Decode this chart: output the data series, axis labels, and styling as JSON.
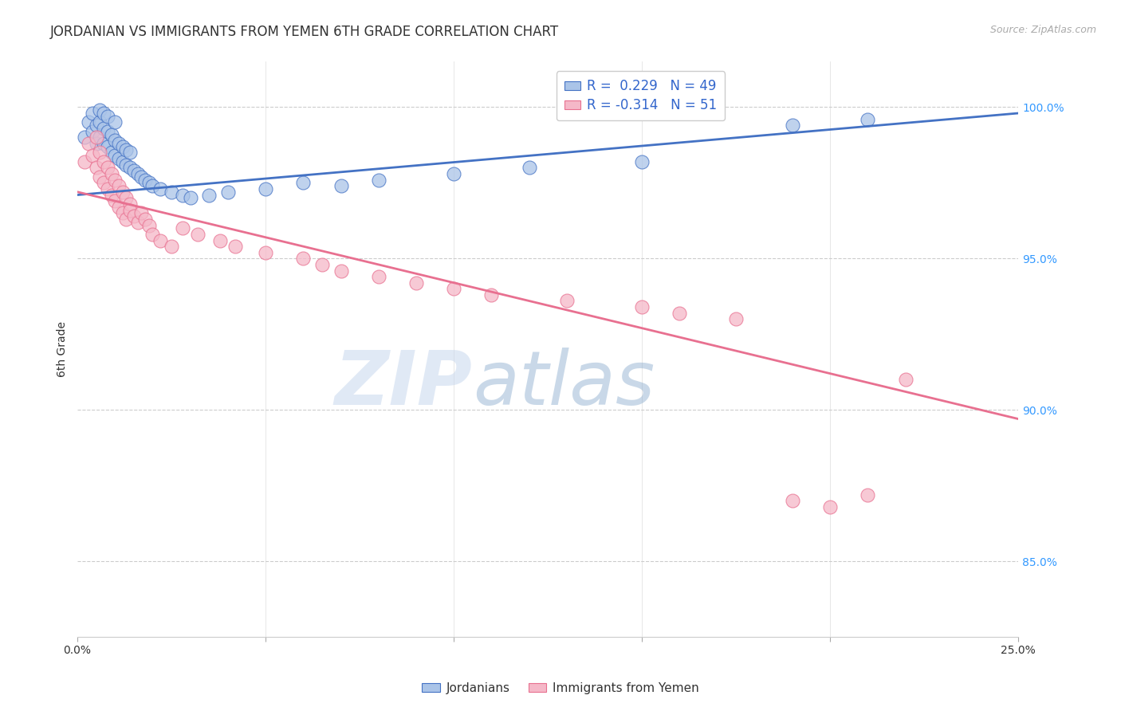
{
  "title": "JORDANIAN VS IMMIGRANTS FROM YEMEN 6TH GRADE CORRELATION CHART",
  "source": "Source: ZipAtlas.com",
  "ylabel": "6th Grade",
  "yticks": [
    0.85,
    0.9,
    0.95,
    1.0
  ],
  "ytick_labels": [
    "85.0%",
    "90.0%",
    "95.0%",
    "100.0%"
  ],
  "xlim": [
    0.0,
    0.25
  ],
  "ylim": [
    0.825,
    1.015
  ],
  "legend1_label": "R =  0.229   N = 49",
  "legend2_label": "R = -0.314   N = 51",
  "legend_label1": "Jordanians",
  "legend_label2": "Immigrants from Yemen",
  "blue_color": "#aac4e8",
  "pink_color": "#f5b8c8",
  "line_blue": "#4472c4",
  "line_pink": "#e87090",
  "blue_x": [
    0.002,
    0.003,
    0.004,
    0.004,
    0.005,
    0.005,
    0.006,
    0.006,
    0.006,
    0.007,
    0.007,
    0.007,
    0.008,
    0.008,
    0.008,
    0.009,
    0.009,
    0.01,
    0.01,
    0.01,
    0.011,
    0.011,
    0.012,
    0.012,
    0.013,
    0.013,
    0.014,
    0.014,
    0.015,
    0.016,
    0.017,
    0.018,
    0.019,
    0.02,
    0.022,
    0.025,
    0.028,
    0.03,
    0.035,
    0.04,
    0.05,
    0.06,
    0.07,
    0.08,
    0.1,
    0.12,
    0.15,
    0.19,
    0.21
  ],
  "blue_y": [
    0.99,
    0.995,
    0.992,
    0.998,
    0.988,
    0.994,
    0.99,
    0.995,
    0.999,
    0.988,
    0.993,
    0.998,
    0.987,
    0.992,
    0.997,
    0.985,
    0.991,
    0.984,
    0.989,
    0.995,
    0.983,
    0.988,
    0.982,
    0.987,
    0.981,
    0.986,
    0.98,
    0.985,
    0.979,
    0.978,
    0.977,
    0.976,
    0.975,
    0.974,
    0.973,
    0.972,
    0.971,
    0.97,
    0.971,
    0.972,
    0.973,
    0.975,
    0.974,
    0.976,
    0.978,
    0.98,
    0.982,
    0.994,
    0.996
  ],
  "pink_x": [
    0.002,
    0.003,
    0.004,
    0.005,
    0.005,
    0.006,
    0.006,
    0.007,
    0.007,
    0.008,
    0.008,
    0.009,
    0.009,
    0.01,
    0.01,
    0.011,
    0.011,
    0.012,
    0.012,
    0.013,
    0.013,
    0.014,
    0.014,
    0.015,
    0.016,
    0.017,
    0.018,
    0.019,
    0.02,
    0.022,
    0.025,
    0.028,
    0.032,
    0.038,
    0.042,
    0.05,
    0.06,
    0.065,
    0.07,
    0.08,
    0.09,
    0.1,
    0.11,
    0.13,
    0.15,
    0.16,
    0.175,
    0.19,
    0.2,
    0.21,
    0.22
  ],
  "pink_y": [
    0.982,
    0.988,
    0.984,
    0.98,
    0.99,
    0.977,
    0.985,
    0.975,
    0.982,
    0.973,
    0.98,
    0.971,
    0.978,
    0.969,
    0.976,
    0.967,
    0.974,
    0.965,
    0.972,
    0.963,
    0.97,
    0.968,
    0.966,
    0.964,
    0.962,
    0.965,
    0.963,
    0.961,
    0.958,
    0.956,
    0.954,
    0.96,
    0.958,
    0.956,
    0.954,
    0.952,
    0.95,
    0.948,
    0.946,
    0.944,
    0.942,
    0.94,
    0.938,
    0.936,
    0.934,
    0.932,
    0.93,
    0.87,
    0.868,
    0.872,
    0.91
  ],
  "blue_line_x": [
    0.0,
    0.25
  ],
  "blue_line_y": [
    0.971,
    0.998
  ],
  "pink_line_x": [
    0.0,
    0.25
  ],
  "pink_line_y": [
    0.972,
    0.897
  ],
  "watermark_zip": "ZIP",
  "watermark_atlas": "atlas",
  "title_fontsize": 12,
  "axis_label_fontsize": 10,
  "tick_fontsize": 10
}
